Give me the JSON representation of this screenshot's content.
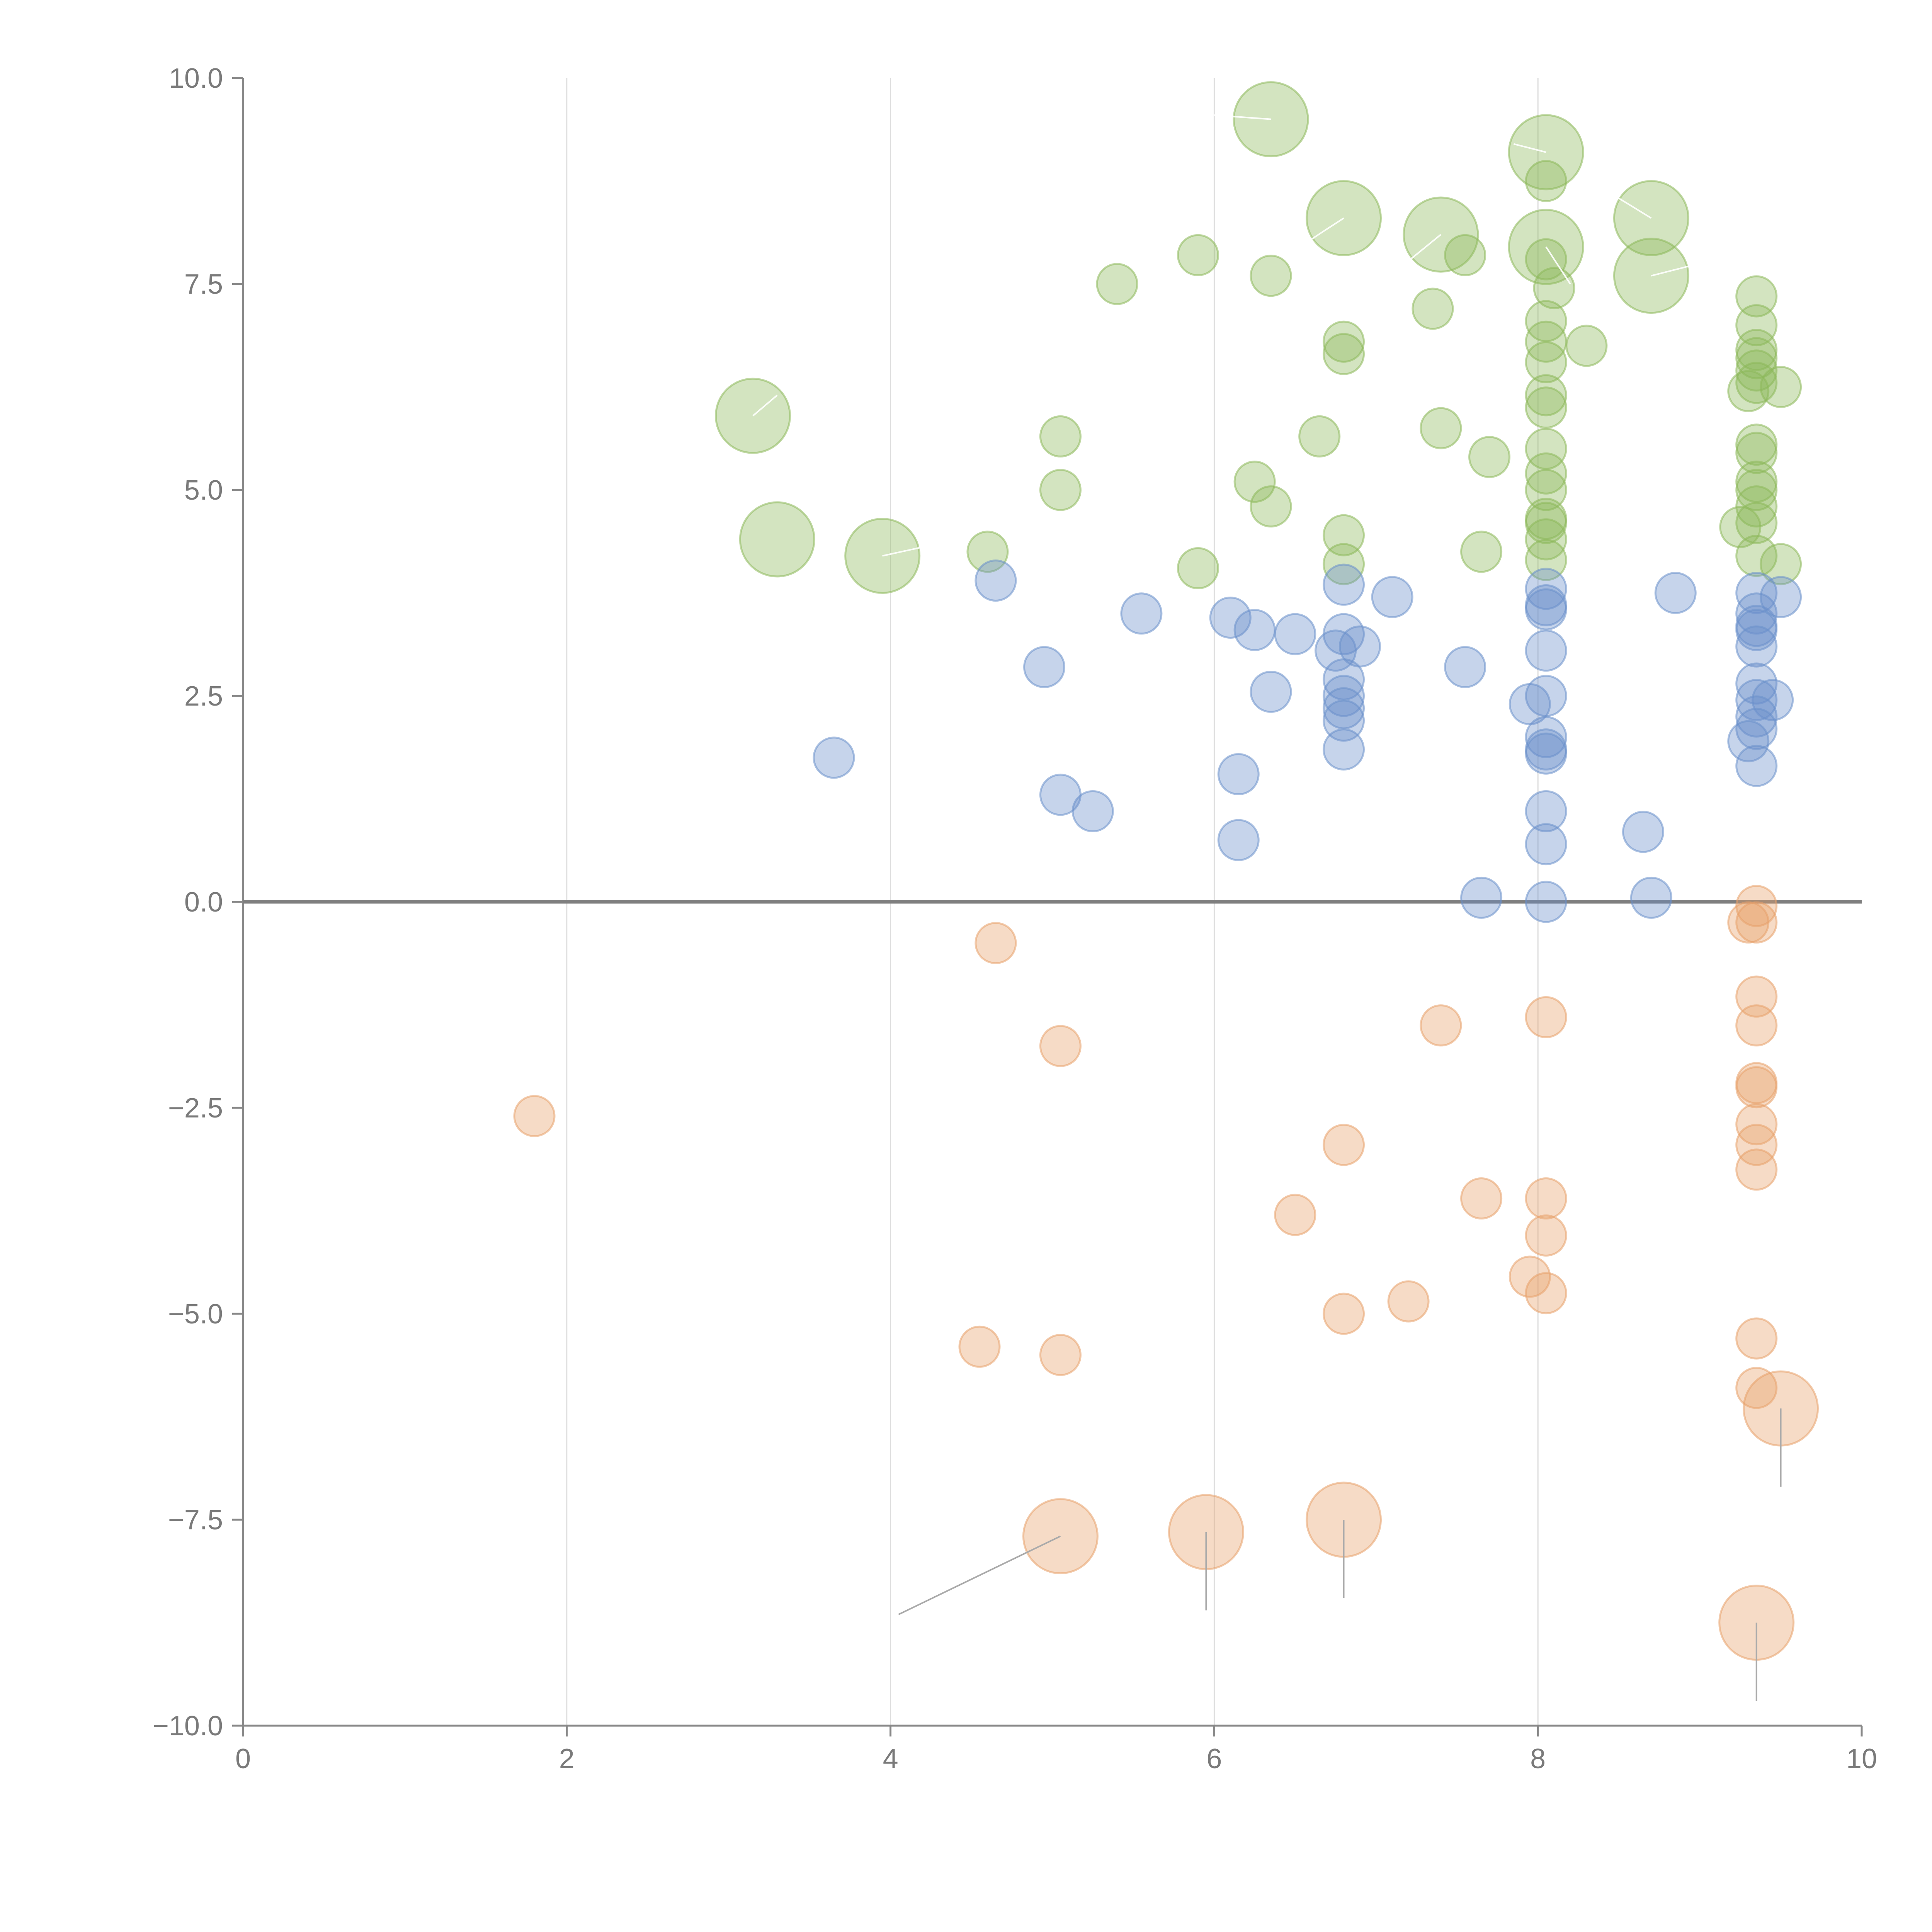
{
  "chart_data": {
    "type": "scatter",
    "title": "",
    "xlabel": "",
    "ylabel": "",
    "xlim": [
      0,
      10
    ],
    "ylim": [
      -10,
      10
    ],
    "x_ticks": [
      "0",
      "2",
      "4",
      "6",
      "8",
      "10"
    ],
    "y_ticks": [
      "10.0",
      "7.5",
      "5.0",
      "2.5",
      "0.0",
      "−2.5",
      "−5.0",
      "−7.5",
      "−10.0"
    ],
    "grid": {
      "vertical": true,
      "horizontal": false
    },
    "legend": "none",
    "colors": {
      "green": "#8cb85a",
      "blue": "#6a8fcb",
      "orange": "#e8a16a"
    },
    "series": [
      {
        "color": "green",
        "points": [
          [
            6.35,
            9.5,
            "l"
          ],
          [
            8.05,
            9.1,
            "l"
          ],
          [
            6.8,
            8.3,
            "l"
          ],
          [
            7.4,
            8.1,
            "l"
          ],
          [
            8.05,
            7.95,
            "l"
          ],
          [
            8.7,
            8.3,
            "l"
          ],
          [
            8.7,
            7.6,
            "l"
          ],
          [
            3.15,
            5.9,
            "l"
          ],
          [
            3.3,
            4.4,
            "l"
          ],
          [
            3.95,
            4.2,
            "l"
          ],
          [
            8.05,
            8.75,
            "s"
          ],
          [
            5.9,
            7.85,
            "s"
          ],
          [
            7.55,
            7.85,
            "s"
          ],
          [
            8.05,
            7.8,
            "s"
          ],
          [
            5.4,
            7.5,
            "s"
          ],
          [
            6.35,
            7.6,
            "s"
          ],
          [
            8.1,
            7.45,
            "s"
          ],
          [
            7.35,
            7.2,
            "s"
          ],
          [
            6.8,
            6.8,
            "s"
          ],
          [
            6.8,
            6.65,
            "s"
          ],
          [
            8.05,
            7.05,
            "s"
          ],
          [
            8.05,
            6.8,
            "s"
          ],
          [
            8.05,
            6.55,
            "s"
          ],
          [
            8.05,
            6.15,
            "s"
          ],
          [
            8.05,
            6.0,
            "s"
          ],
          [
            8.3,
            6.75,
            "s"
          ],
          [
            5.05,
            5.65,
            "s"
          ],
          [
            6.65,
            5.65,
            "s"
          ],
          [
            7.4,
            5.75,
            "s"
          ],
          [
            7.7,
            5.4,
            "s"
          ],
          [
            8.05,
            5.5,
            "s"
          ],
          [
            8.05,
            5.2,
            "s"
          ],
          [
            8.05,
            5.0,
            "s"
          ],
          [
            5.05,
            5.0,
            "s"
          ],
          [
            6.25,
            5.1,
            "s"
          ],
          [
            6.35,
            4.8,
            "s"
          ],
          [
            8.05,
            4.65,
            "s"
          ],
          [
            8.05,
            4.6,
            "s"
          ],
          [
            8.05,
            4.4,
            "s"
          ],
          [
            8.05,
            4.15,
            "s"
          ],
          [
            6.8,
            4.45,
            "s"
          ],
          [
            6.8,
            4.1,
            "s"
          ],
          [
            7.65,
            4.25,
            "s"
          ],
          [
            4.6,
            4.25,
            "s"
          ],
          [
            5.9,
            4.05,
            "s"
          ],
          [
            9.35,
            7.35,
            "s"
          ],
          [
            9.35,
            7.0,
            "s"
          ],
          [
            9.35,
            6.7,
            "s"
          ],
          [
            9.35,
            6.6,
            "s"
          ],
          [
            9.35,
            6.45,
            "s"
          ],
          [
            9.35,
            6.3,
            "s"
          ],
          [
            9.3,
            6.2,
            "s"
          ],
          [
            9.5,
            6.25,
            "s"
          ],
          [
            9.35,
            5.55,
            "s"
          ],
          [
            9.35,
            5.45,
            "s"
          ],
          [
            9.35,
            5.1,
            "s"
          ],
          [
            9.35,
            5.0,
            "s"
          ],
          [
            9.35,
            4.8,
            "s"
          ],
          [
            9.35,
            4.6,
            "s"
          ],
          [
            9.25,
            4.55,
            "s"
          ],
          [
            9.35,
            4.2,
            "s"
          ],
          [
            9.5,
            4.1,
            "s"
          ]
        ]
      },
      {
        "color": "blue",
        "points": [
          [
            4.65,
            3.9,
            "s"
          ],
          [
            5.55,
            3.5,
            "s"
          ],
          [
            6.1,
            3.45,
            "s"
          ],
          [
            6.25,
            3.3,
            "s"
          ],
          [
            6.5,
            3.25,
            "s"
          ],
          [
            7.1,
            3.7,
            "s"
          ],
          [
            6.8,
            3.85,
            "s"
          ],
          [
            6.8,
            3.25,
            "s"
          ],
          [
            6.75,
            3.05,
            "s"
          ],
          [
            6.9,
            3.1,
            "s"
          ],
          [
            6.8,
            2.7,
            "s"
          ],
          [
            6.8,
            2.5,
            "s"
          ],
          [
            6.8,
            2.35,
            "s"
          ],
          [
            6.8,
            2.2,
            "s"
          ],
          [
            6.8,
            1.85,
            "s"
          ],
          [
            6.35,
            2.55,
            "s"
          ],
          [
            4.95,
            2.85,
            "s"
          ],
          [
            7.55,
            2.85,
            "s"
          ],
          [
            3.65,
            1.75,
            "s"
          ],
          [
            5.05,
            1.3,
            "s"
          ],
          [
            5.25,
            1.1,
            "s"
          ],
          [
            6.15,
            1.55,
            "s"
          ],
          [
            6.15,
            0.75,
            "s"
          ],
          [
            8.05,
            3.8,
            "s"
          ],
          [
            8.05,
            3.6,
            "s"
          ],
          [
            8.05,
            3.55,
            "s"
          ],
          [
            8.05,
            3.05,
            "s"
          ],
          [
            8.05,
            2.5,
            "s"
          ],
          [
            7.95,
            2.4,
            "s"
          ],
          [
            8.05,
            2.0,
            "s"
          ],
          [
            8.05,
            1.85,
            "s"
          ],
          [
            8.05,
            1.8,
            "s"
          ],
          [
            8.05,
            1.1,
            "s"
          ],
          [
            8.05,
            0.7,
            "s"
          ],
          [
            8.05,
            0.0,
            "s"
          ],
          [
            7.65,
            0.05,
            "s"
          ],
          [
            8.65,
            0.85,
            "s"
          ],
          [
            8.7,
            0.05,
            "s"
          ],
          [
            8.85,
            3.75,
            "s"
          ],
          [
            9.35,
            3.75,
            "s"
          ],
          [
            9.35,
            3.5,
            "s"
          ],
          [
            9.35,
            3.35,
            "s"
          ],
          [
            9.35,
            3.3,
            "s"
          ],
          [
            9.35,
            3.1,
            "s"
          ],
          [
            9.35,
            2.65,
            "s"
          ],
          [
            9.35,
            2.45,
            "s"
          ],
          [
            9.45,
            2.45,
            "s"
          ],
          [
            9.35,
            2.25,
            "s"
          ],
          [
            9.35,
            2.1,
            "s"
          ],
          [
            9.3,
            1.95,
            "s"
          ],
          [
            9.35,
            1.65,
            "s"
          ],
          [
            9.5,
            3.7,
            "s"
          ]
        ]
      },
      {
        "color": "orange",
        "points": [
          [
            4.65,
            -0.5,
            "s"
          ],
          [
            5.05,
            -1.75,
            "s"
          ],
          [
            1.8,
            -2.6,
            "s"
          ],
          [
            7.4,
            -1.5,
            "s"
          ],
          [
            8.05,
            -1.4,
            "s"
          ],
          [
            6.8,
            -2.95,
            "s"
          ],
          [
            6.5,
            -3.8,
            "s"
          ],
          [
            7.65,
            -3.6,
            "s"
          ],
          [
            8.05,
            -3.6,
            "s"
          ],
          [
            8.05,
            -4.05,
            "s"
          ],
          [
            7.95,
            -4.55,
            "s"
          ],
          [
            8.05,
            -4.75,
            "s"
          ],
          [
            7.2,
            -4.85,
            "s"
          ],
          [
            6.8,
            -5.0,
            "s"
          ],
          [
            4.55,
            -5.4,
            "s"
          ],
          [
            5.05,
            -5.5,
            "s"
          ],
          [
            9.35,
            -0.05,
            "s"
          ],
          [
            9.3,
            -0.25,
            "s"
          ],
          [
            9.35,
            -0.25,
            "s"
          ],
          [
            9.35,
            -1.15,
            "s"
          ],
          [
            9.35,
            -1.5,
            "s"
          ],
          [
            9.35,
            -2.2,
            "s"
          ],
          [
            9.35,
            -2.25,
            "s"
          ],
          [
            9.35,
            -2.7,
            "s"
          ],
          [
            9.35,
            -2.95,
            "s"
          ],
          [
            9.35,
            -3.25,
            "s"
          ],
          [
            9.35,
            -5.3,
            "s"
          ],
          [
            9.35,
            -5.9,
            "s"
          ],
          [
            9.5,
            -6.15,
            "l"
          ],
          [
            5.05,
            -7.7,
            "l"
          ],
          [
            5.95,
            -7.65,
            "l"
          ],
          [
            6.8,
            -7.5,
            "l"
          ],
          [
            9.35,
            -8.75,
            "l"
          ]
        ]
      }
    ]
  }
}
